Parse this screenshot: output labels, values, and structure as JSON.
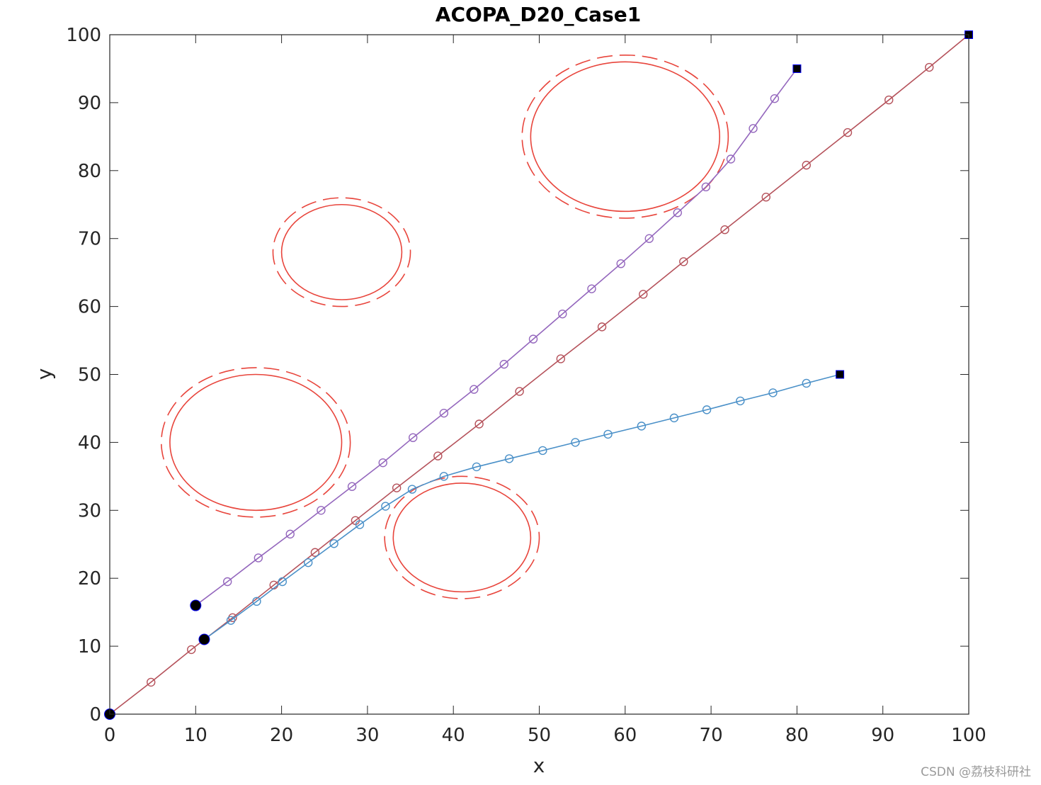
{
  "watermark": "CSDN @荔枝科研社",
  "chart_data": {
    "type": "line",
    "title": "ACOPA_D20_Case1",
    "xlabel": "x",
    "ylabel": "y",
    "xlim": [
      0,
      100
    ],
    "ylim": [
      0,
      100
    ],
    "xticks": [
      0,
      10,
      20,
      30,
      40,
      50,
      60,
      70,
      80,
      90,
      100
    ],
    "yticks": [
      0,
      10,
      20,
      30,
      40,
      50,
      60,
      70,
      80,
      90,
      100
    ],
    "grid": false,
    "colors": {
      "obstacle": "#e8453c",
      "path_purple": "#9467bd",
      "path_red": "#b5525b",
      "path_blue": "#4a90c8",
      "endpoint": "#000000",
      "axis": "#262626"
    },
    "obstacles": [
      {
        "cx": 60,
        "cy": 85,
        "r": 11,
        "r_safe": 12
      },
      {
        "cx": 27,
        "cy": 68,
        "r": 7,
        "r_safe": 8
      },
      {
        "cx": 17,
        "cy": 40,
        "r": 10,
        "r_safe": 11
      },
      {
        "cx": 41,
        "cy": 26,
        "r": 8,
        "r_safe": 9
      }
    ],
    "series": [
      {
        "color": "#9467bd",
        "start": [
          10,
          16
        ],
        "goal": [
          80,
          95
        ],
        "x": [
          10,
          13.7,
          17.3,
          21,
          24.6,
          28.2,
          31.8,
          35.3,
          38.9,
          42.4,
          45.9,
          49.3,
          52.7,
          56.1,
          59.5,
          62.8,
          66.1,
          69.4,
          72.3,
          74.9,
          77.4,
          80
        ],
        "y": [
          16,
          19.5,
          23,
          26.5,
          30,
          33.5,
          37,
          40.7,
          44.3,
          47.8,
          51.5,
          55.2,
          58.9,
          62.6,
          66.3,
          70,
          73.8,
          77.6,
          81.7,
          86.2,
          90.6,
          95
        ]
      },
      {
        "color": "#b5525b",
        "start": [
          0,
          0
        ],
        "goal": [
          100,
          100
        ],
        "x": [
          0,
          4.8,
          9.5,
          14.3,
          19.1,
          23.9,
          28.6,
          33.4,
          38.2,
          43,
          47.7,
          52.5,
          57.3,
          62.1,
          66.8,
          71.6,
          76.4,
          81.1,
          85.9,
          90.7,
          95.4,
          100
        ],
        "y": [
          0,
          4.7,
          9.5,
          14.2,
          19,
          23.8,
          28.5,
          33.3,
          38,
          42.7,
          47.5,
          52.3,
          57,
          61.8,
          66.6,
          71.3,
          76.1,
          80.8,
          85.6,
          90.4,
          95.2,
          100
        ]
      },
      {
        "color": "#4a90c8",
        "start": [
          11,
          11
        ],
        "goal": [
          85,
          50
        ],
        "x": [
          11,
          14.1,
          17.1,
          20.1,
          23.1,
          26.1,
          29.1,
          32.1,
          35.2,
          38.9,
          42.7,
          46.5,
          50.4,
          54.2,
          58,
          61.9,
          65.7,
          69.5,
          73.4,
          77.2,
          81.1,
          85
        ],
        "y": [
          11,
          13.8,
          16.6,
          19.5,
          22.3,
          25.1,
          27.9,
          30.6,
          33.1,
          35,
          36.4,
          37.6,
          38.8,
          40,
          41.2,
          42.4,
          43.6,
          44.8,
          46.1,
          47.3,
          48.7,
          50
        ]
      }
    ]
  }
}
